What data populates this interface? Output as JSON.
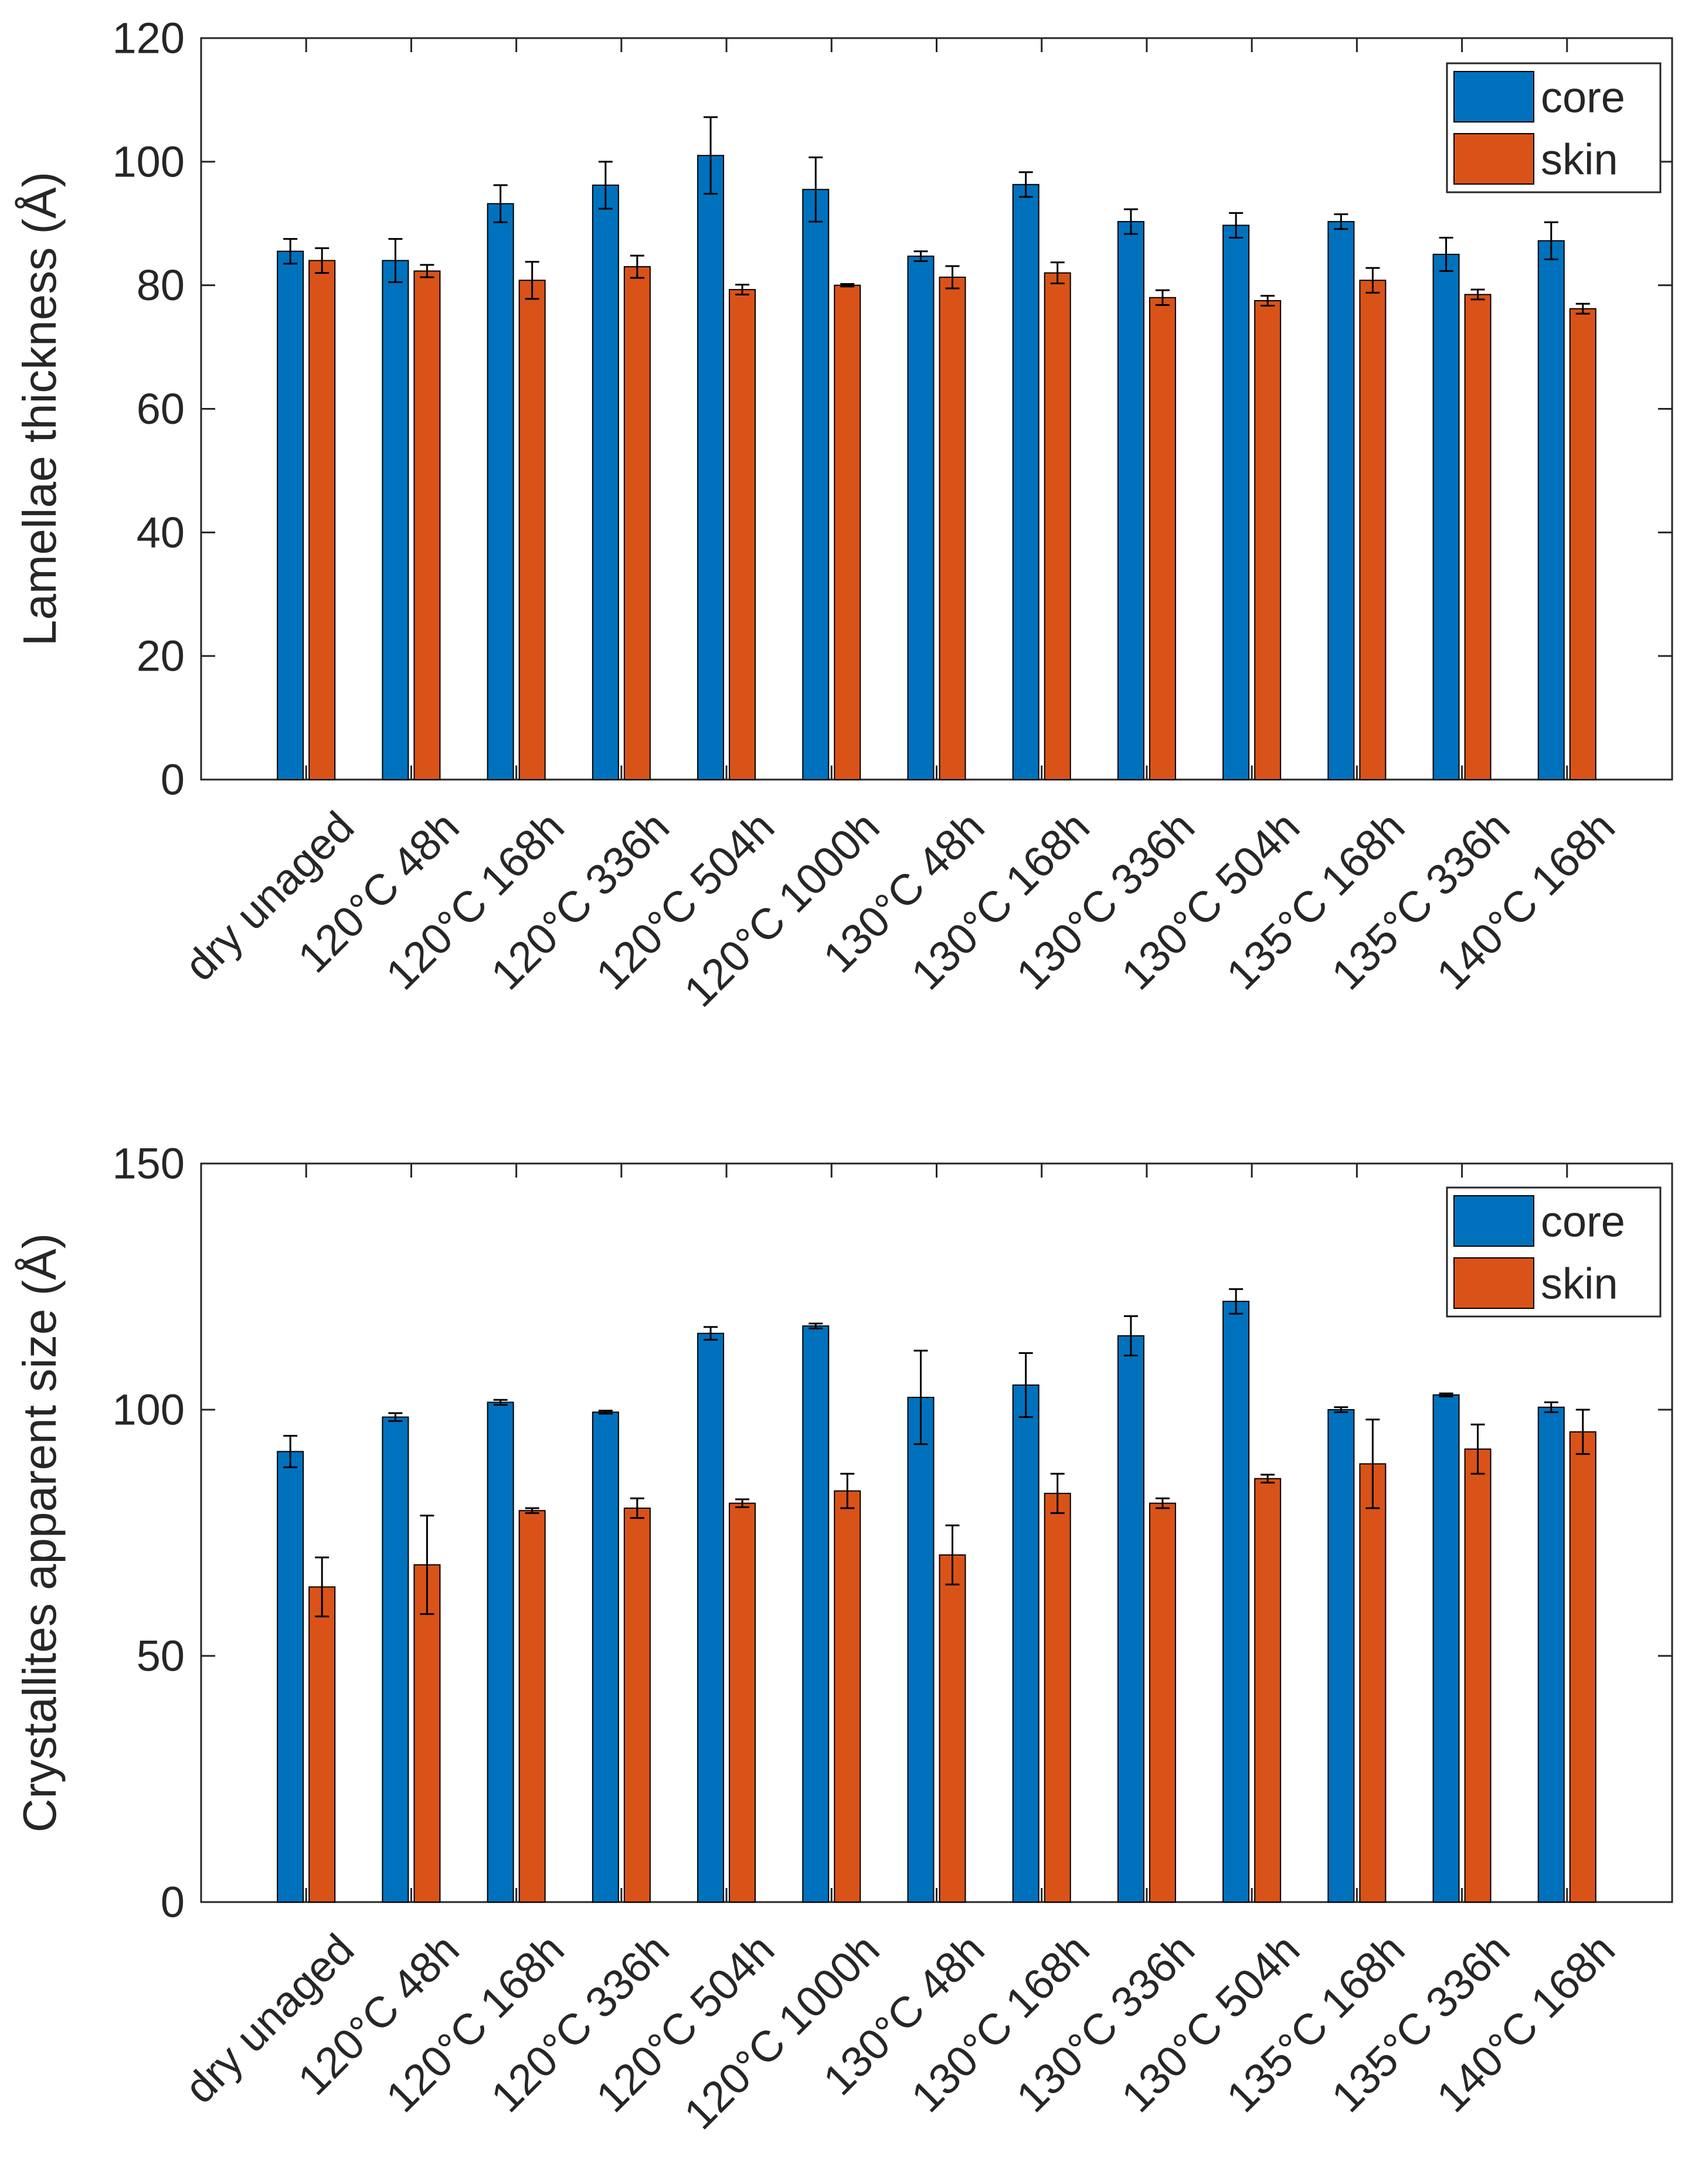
{
  "chart_data": [
    {
      "type": "bar",
      "title": "",
      "xlabel": "",
      "ylabel": "Lamellae thickness (Å)",
      "ylim": [
        0,
        120
      ],
      "yticks": [
        0,
        20,
        40,
        60,
        80,
        100,
        120
      ],
      "grid": false,
      "legend_position": "top-right",
      "categories": [
        "dry unaged",
        "120°C 48h",
        "120°C 168h",
        "120°C 336h",
        "120°C 504h",
        "120°C 1000h",
        "130°C 48h",
        "130°C 168h",
        "130°C 336h",
        "130°C 504h",
        "135°C 168h",
        "135°C 336h",
        "140°C 168h"
      ],
      "series": [
        {
          "name": "core",
          "color": "#0072BD",
          "values": [
            85.5,
            84.0,
            93.2,
            96.2,
            101.0,
            95.5,
            84.7,
            96.3,
            90.3,
            89.7,
            90.3,
            85.0,
            87.2
          ],
          "errors": [
            2.0,
            3.5,
            3.0,
            3.8,
            6.2,
            5.2,
            0.8,
            2.0,
            2.0,
            2.0,
            1.2,
            2.7,
            3.0
          ]
        },
        {
          "name": "skin",
          "color": "#D95319",
          "values": [
            84.0,
            82.3,
            80.8,
            83.0,
            79.3,
            80.0,
            81.3,
            82.0,
            78.0,
            77.5,
            80.8,
            78.5,
            76.2
          ],
          "errors": [
            2.0,
            1.0,
            3.0,
            1.8,
            0.8,
            0.2,
            1.8,
            1.7,
            1.2,
            0.8,
            2.0,
            0.8,
            0.8
          ]
        }
      ]
    },
    {
      "type": "bar",
      "title": "",
      "xlabel": "",
      "ylabel": "Crystallites apparent size (Å)",
      "ylim": [
        0,
        150
      ],
      "yticks": [
        0,
        50,
        100,
        150
      ],
      "grid": false,
      "legend_position": "top-right",
      "categories": [
        "dry unaged",
        "120°C 48h",
        "120°C 168h",
        "120°C 336h",
        "120°C 504h",
        "120°C 1000h",
        "130°C 48h",
        "130°C 168h",
        "130°C 336h",
        "130°C 504h",
        "135°C 168h",
        "135°C 336h",
        "140°C 168h"
      ],
      "series": [
        {
          "name": "core",
          "color": "#0072BD",
          "values": [
            91.5,
            98.5,
            101.5,
            99.5,
            115.5,
            117.0,
            102.5,
            105.0,
            115.0,
            122.0,
            100.0,
            103.0,
            100.5
          ],
          "errors": [
            3.2,
            0.8,
            0.5,
            0.3,
            1.3,
            0.5,
            9.5,
            6.5,
            4.0,
            2.5,
            0.5,
            0.3,
            1.0
          ]
        },
        {
          "name": "skin",
          "color": "#D95319",
          "values": [
            64.0,
            68.5,
            79.5,
            80.0,
            81.0,
            83.5,
            70.5,
            83.0,
            81.0,
            86.0,
            89.0,
            92.0,
            95.5
          ],
          "errors": [
            6.0,
            10.0,
            0.5,
            2.0,
            0.8,
            3.5,
            6.0,
            4.0,
            1.0,
            0.8,
            9.0,
            5.0,
            4.5
          ]
        }
      ]
    }
  ]
}
